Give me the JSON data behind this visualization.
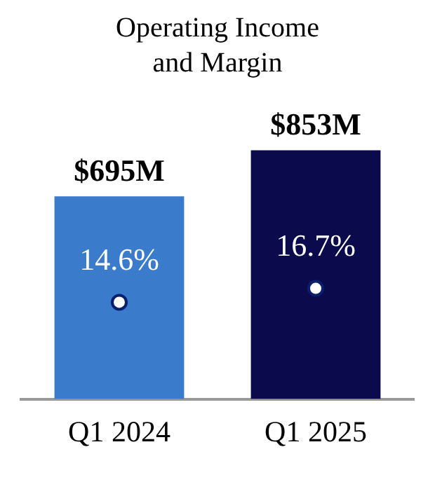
{
  "chart_data": {
    "type": "bar",
    "title": "Operating Income and Margin",
    "categories": [
      "Q1 2024",
      "Q1 2025"
    ],
    "series": [
      {
        "colors": [
          "#3a7bcc",
          "#0a0a4c"
        ],
        "values": [
          695,
          853
        ],
        "value_labels": [
          "$695M",
          "$853M"
        ]
      },
      {
        "type": "scatter",
        "axis": "y2",
        "color": "#ffffff",
        "values": [
          14.6,
          16.7
        ],
        "value_labels": [
          "14.6%",
          "16.7%"
        ]
      }
    ],
    "tick_labels": "x",
    "grid": false,
    "legend": false,
    "marker": "circle"
  }
}
